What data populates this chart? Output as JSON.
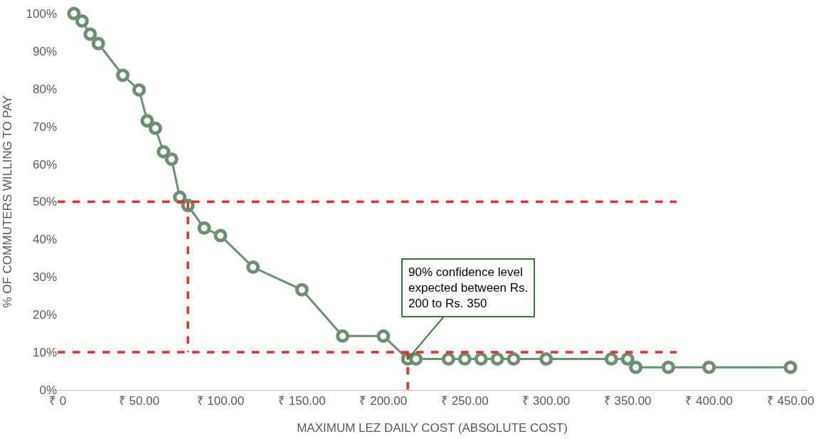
{
  "chart_data": {
    "type": "line",
    "xlabel": "MAXIMUM LEZ DAILY COST (ABSOLUTE COST)",
    "ylabel": "% OF COMMUTERS WILLING TO PAY",
    "xlim": [
      0,
      460
    ],
    "ylim": [
      0,
      100
    ],
    "xticks": [
      {
        "value": 0,
        "label": "₹ 0"
      },
      {
        "value": 50,
        "label": "₹ 50.00"
      },
      {
        "value": 100,
        "label": "₹ 100.00"
      },
      {
        "value": 150,
        "label": "₹ 150.00"
      },
      {
        "value": 200,
        "label": "₹ 200.00"
      },
      {
        "value": 250,
        "label": "₹ 250.00"
      },
      {
        "value": 300,
        "label": "₹ 300.00"
      },
      {
        "value": 350,
        "label": "₹ 350.00"
      },
      {
        "value": 400,
        "label": "₹ 400.00"
      },
      {
        "value": 450,
        "label": "₹ 450.00"
      }
    ],
    "yticks": [
      {
        "value": 0,
        "label": "0%"
      },
      {
        "value": 10,
        "label": "10%"
      },
      {
        "value": 20,
        "label": "20%"
      },
      {
        "value": 30,
        "label": "30%"
      },
      {
        "value": 40,
        "label": "40%"
      },
      {
        "value": 50,
        "label": "50%"
      },
      {
        "value": 60,
        "label": "60%"
      },
      {
        "value": 70,
        "label": "70%"
      },
      {
        "value": 80,
        "label": "80%"
      },
      {
        "value": 90,
        "label": "90%"
      },
      {
        "value": 100,
        "label": "100%"
      }
    ],
    "series": [
      {
        "color": "#6b8f71",
        "marker": "circle",
        "line_style": "solid",
        "x": [
          10,
          15,
          20,
          25,
          40,
          50,
          55,
          60,
          65,
          70,
          75,
          80,
          90,
          100,
          120,
          150,
          175,
          200,
          215,
          220,
          240,
          250,
          260,
          270,
          280,
          300,
          340,
          350,
          355,
          375,
          400,
          450
        ],
        "values": [
          100,
          98,
          94.5,
          92,
          83.6,
          79.7,
          71.5,
          69.5,
          63.3,
          61.3,
          51.2,
          49,
          43,
          41,
          32.6,
          26.6,
          14.3,
          14.3,
          8.2,
          8.2,
          8.2,
          8.2,
          8.2,
          8.2,
          8.2,
          8.2,
          8.2,
          8.2,
          6,
          6,
          6,
          6
        ]
      },
      {
        "color": "#ee2a2a",
        "marker": "none",
        "line_style": "dashed",
        "x": [
          0,
          380
        ],
        "values": [
          50,
          50
        ]
      },
      {
        "color": "#ee2a2a",
        "marker": "none",
        "line_style": "dashed",
        "x": [
          0,
          380
        ],
        "values": [
          10,
          10
        ]
      },
      {
        "color": "#ee2a2a",
        "marker": "none",
        "line_style": "dashed",
        "x": [
          80,
          80
        ],
        "values": [
          50,
          10
        ]
      },
      {
        "color": "#ee2a2a",
        "marker": "none",
        "line_style": "dashed",
        "x": [
          215,
          215
        ],
        "values": [
          10,
          0
        ]
      }
    ],
    "annotations": [
      {
        "text": "90% confidence level\nexpected between Rs.\n200 to Rs. 350",
        "x": 215,
        "y": 8.2
      }
    ]
  }
}
